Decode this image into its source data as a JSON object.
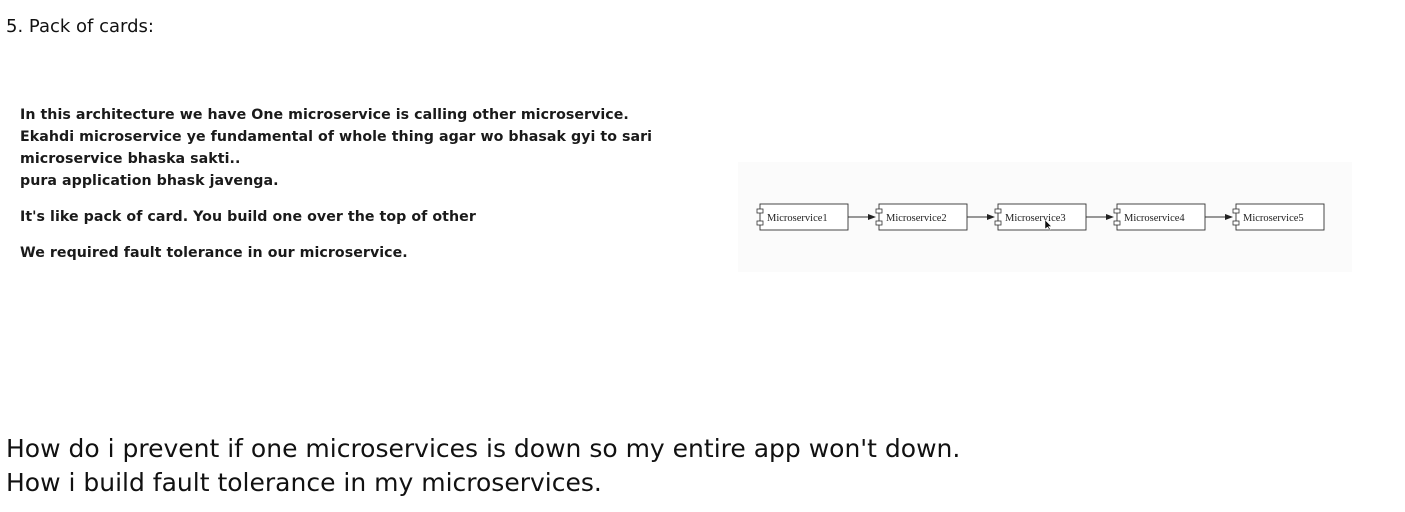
{
  "heading": "5. Pack of cards:",
  "note": {
    "lines": [
      "In this architecture we have One microservice is calling other microservice.",
      "Ekahdi microservice ye fundamental of whole thing agar wo bhasak gyi to sari",
      "microservice bhaska sakti..",
      "pura application bhask javenga.",
      "It's like pack of card. You build one over the top of other",
      "We required fault tolerance in our microservice."
    ]
  },
  "diagram": {
    "boxes": [
      "Microservice1",
      "Microservice2",
      "Microservice3",
      "Microservice4",
      "Microservice5"
    ]
  },
  "questions": [
    "How do i prevent if one microservices is down so my entire app won't down.",
    "How i build fault tolerance in my microservices."
  ]
}
